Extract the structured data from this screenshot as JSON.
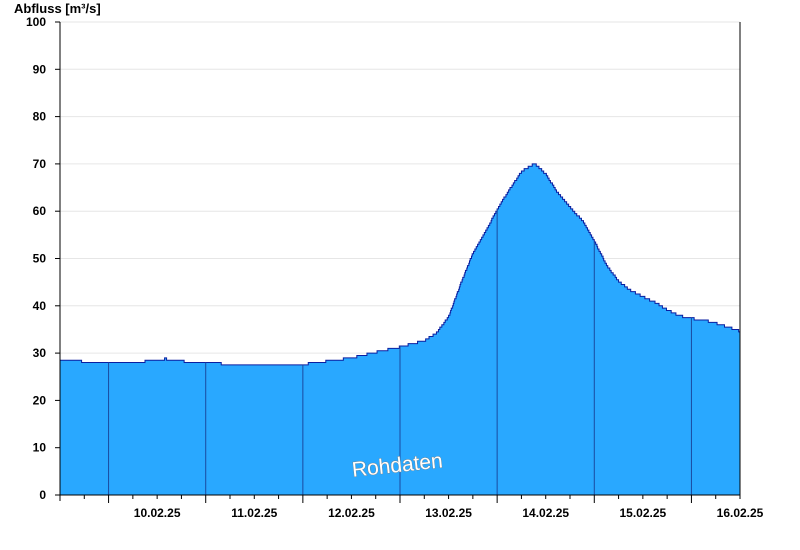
{
  "colors": {
    "area_fill": "#29a8ff",
    "area_line": "#0a1ea0",
    "axis": "#000000",
    "grid": "#e6e6e6",
    "day_line": "#1a4aa0"
  },
  "chart_data": {
    "type": "area",
    "ylabel": "Abfluss [m³/s]",
    "ylim": [
      0,
      100
    ],
    "yticks": [
      0,
      10,
      20,
      30,
      40,
      50,
      60,
      70,
      80,
      90,
      100
    ],
    "yticks_labels": [
      "0",
      "10",
      "20",
      "30",
      "40",
      "50",
      "60",
      "70",
      "80",
      "90",
      "100"
    ],
    "xlim": [
      "09.02.25 12:00",
      "16.02.25 12:00"
    ],
    "xtick_labels": [
      "10.02.25",
      "11.02.25",
      "12.02.25",
      "13.02.25",
      "14.02.25",
      "15.02.25",
      "16.02.25"
    ],
    "grid": true,
    "annotation": "Rohdaten",
    "series": [
      {
        "x": [
          "09.02.25 12:00",
          "09.02.25 15:00",
          "09.02.25 18:00",
          "10.02.25 00:00",
          "10.02.25 06:00",
          "10.02.25 12:00",
          "10.02.25 14:00",
          "10.02.25 17:00",
          "10.02.25 23:00",
          "11.02.25 00:00",
          "11.02.25 06:00",
          "11.02.25 12:00",
          "11.02.25 18:00",
          "12.02.25 00:00",
          "12.02.25 06:00",
          "12.02.25 12:00",
          "12.02.25 18:00",
          "13.02.25 00:00",
          "13.02.25 03:00",
          "13.02.25 06:00",
          "13.02.25 09:00",
          "13.02.25 12:00",
          "13.02.25 15:00",
          "13.02.25 18:00",
          "13.02.25 21:00",
          "14.02.25 00:00",
          "14.02.25 03:00",
          "14.02.25 06:00",
          "14.02.25 09:00",
          "14.02.25 10:00",
          "14.02.25 12:00",
          "14.02.25 15:00",
          "14.02.25 18:00",
          "14.02.25 21:00",
          "15.02.25 00:00",
          "15.02.25 03:00",
          "15.02.25 06:00",
          "15.02.25 09:00",
          "15.02.25 12:00",
          "15.02.25 15:00",
          "15.02.25 18:00",
          "15.02.25 21:00",
          "16.02.25 00:00",
          "16.02.25 03:00",
          "16.02.25 06:00",
          "16.02.25 09:00",
          "16.02.25 12:00"
        ],
        "y": [
          28.6,
          28.4,
          28.2,
          28.2,
          28.2,
          28.3,
          28.8,
          28.3,
          28.1,
          28.0,
          27.6,
          27.4,
          27.4,
          27.6,
          28.3,
          29.0,
          30.2,
          31.3,
          32.0,
          32.6,
          34.3,
          37.8,
          44.8,
          51.2,
          55.5,
          60.5,
          64.6,
          68.4,
          70.0,
          69.5,
          67.8,
          63.8,
          60.8,
          58.0,
          53.6,
          48.6,
          45.1,
          43.2,
          41.9,
          40.7,
          39.1,
          37.9,
          37.3,
          37.0,
          36.3,
          35.5,
          34.6
        ]
      }
    ]
  }
}
